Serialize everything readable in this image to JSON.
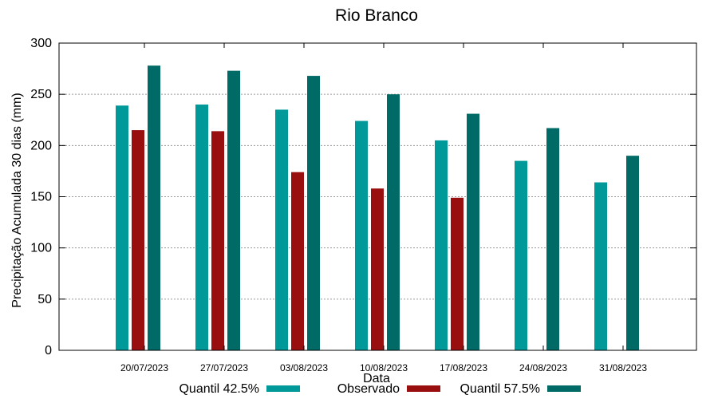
{
  "chart_data": {
    "type": "bar",
    "title": "Rio Branco",
    "xlabel": "Data",
    "ylabel": "Precipitação Acumulada 30 dias (mm)",
    "ylim": [
      0,
      300
    ],
    "yticks": [
      0,
      50,
      100,
      150,
      200,
      250,
      300
    ],
    "grid": true,
    "legend_position": "bottom",
    "categories": [
      "20/07/2023",
      "27/07/2023",
      "03/08/2023",
      "10/08/2023",
      "17/08/2023",
      "24/08/2023",
      "31/08/2023"
    ],
    "series": [
      {
        "name": "Quantil 42.5%",
        "color": "#009999",
        "values": [
          239,
          240,
          235,
          224,
          205,
          185,
          164
        ]
      },
      {
        "name": "Observado",
        "color": "#990f0f",
        "values": [
          215,
          214,
          174,
          158,
          149,
          null,
          null
        ]
      },
      {
        "name": "Quantil 57.5%",
        "color": "#006b66",
        "values": [
          278,
          273,
          268,
          250,
          231,
          217,
          190
        ]
      }
    ]
  }
}
